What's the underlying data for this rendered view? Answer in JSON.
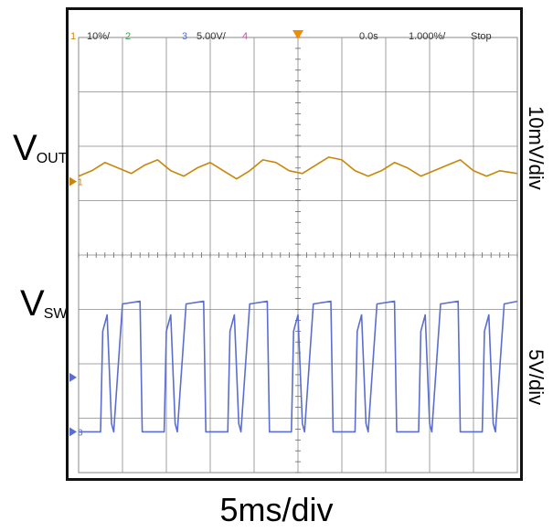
{
  "header": {
    "ch1_number": "1",
    "ch1_scale": "10%/",
    "ch2_number": "2",
    "ch3_number": "3",
    "ch3_scale": "5.00V/",
    "ch4_number": "4",
    "time_position": "0.0s",
    "time_scale": "1.000%/",
    "run_state": "Stop"
  },
  "colors": {
    "ch1": "#c8860a",
    "ch2": "#3aa64c",
    "ch3": "#5b6ed0",
    "ch4": "#c94aa7",
    "grid": "#888888",
    "trigger": "#f08c00"
  },
  "labels": {
    "vout_main": "V",
    "vout_sub": "OUT",
    "vsw_main": "V",
    "vsw_sub": "SW",
    "vout_scale": "10mV/div",
    "vsw_scale": "5V/div",
    "time_scale": "5ms/div"
  },
  "markers": {
    "ch1_marker": "1",
    "ch3_marker": "3"
  },
  "chart_data": {
    "type": "line",
    "grid": true,
    "x_divisions": 10,
    "y_divisions": 8,
    "x_unit": "div",
    "xlim": [
      0,
      10
    ],
    "ylim": [
      0,
      8
    ],
    "series": [
      {
        "name": "VOUT",
        "channel": 1,
        "color": "#c8860a",
        "ground_div": 5.35,
        "description_values_div": "ripple around ~5.55 div, amplitude ~0.25 div",
        "points": [
          [
            0.0,
            5.45
          ],
          [
            0.3,
            5.55
          ],
          [
            0.6,
            5.7
          ],
          [
            0.9,
            5.6
          ],
          [
            1.2,
            5.5
          ],
          [
            1.5,
            5.65
          ],
          [
            1.8,
            5.75
          ],
          [
            2.1,
            5.55
          ],
          [
            2.4,
            5.45
          ],
          [
            2.7,
            5.6
          ],
          [
            3.0,
            5.7
          ],
          [
            3.3,
            5.55
          ],
          [
            3.6,
            5.4
          ],
          [
            3.9,
            5.55
          ],
          [
            4.2,
            5.75
          ],
          [
            4.5,
            5.7
          ],
          [
            4.8,
            5.55
          ],
          [
            5.1,
            5.5
          ],
          [
            5.4,
            5.65
          ],
          [
            5.7,
            5.8
          ],
          [
            6.0,
            5.75
          ],
          [
            6.3,
            5.55
          ],
          [
            6.6,
            5.45
          ],
          [
            6.9,
            5.55
          ],
          [
            7.2,
            5.7
          ],
          [
            7.5,
            5.6
          ],
          [
            7.8,
            5.45
          ],
          [
            8.1,
            5.55
          ],
          [
            8.4,
            5.65
          ],
          [
            8.7,
            5.75
          ],
          [
            9.0,
            5.55
          ],
          [
            9.3,
            5.45
          ],
          [
            9.6,
            5.55
          ],
          [
            10.0,
            5.5
          ]
        ]
      },
      {
        "name": "VSW",
        "channel": 3,
        "color": "#5b6ed0",
        "ground_div": 0.75,
        "description_values_div": "square-ish switching waveform, low ~0.75 div, high ~3.15 div, ~6 periods across screen",
        "points": [
          [
            0.0,
            0.75
          ],
          [
            0.5,
            0.75
          ],
          [
            0.55,
            2.6
          ],
          [
            0.65,
            2.9
          ],
          [
            0.75,
            0.9
          ],
          [
            0.8,
            0.75
          ],
          [
            1.0,
            3.1
          ],
          [
            1.4,
            3.15
          ],
          [
            1.45,
            0.75
          ],
          [
            1.95,
            0.75
          ],
          [
            2.0,
            2.6
          ],
          [
            2.1,
            2.9
          ],
          [
            2.2,
            0.9
          ],
          [
            2.25,
            0.75
          ],
          [
            2.45,
            3.1
          ],
          [
            2.85,
            3.15
          ],
          [
            2.9,
            0.75
          ],
          [
            3.4,
            0.75
          ],
          [
            3.45,
            2.6
          ],
          [
            3.55,
            2.9
          ],
          [
            3.65,
            0.9
          ],
          [
            3.7,
            0.75
          ],
          [
            3.9,
            3.1
          ],
          [
            4.3,
            3.15
          ],
          [
            4.35,
            0.75
          ],
          [
            4.85,
            0.75
          ],
          [
            4.9,
            2.6
          ],
          [
            5.0,
            2.9
          ],
          [
            5.1,
            0.9
          ],
          [
            5.15,
            0.75
          ],
          [
            5.35,
            3.1
          ],
          [
            5.75,
            3.15
          ],
          [
            5.8,
            0.75
          ],
          [
            6.3,
            0.75
          ],
          [
            6.35,
            2.6
          ],
          [
            6.45,
            2.9
          ],
          [
            6.55,
            0.9
          ],
          [
            6.6,
            0.75
          ],
          [
            6.8,
            3.1
          ],
          [
            7.2,
            3.15
          ],
          [
            7.25,
            0.75
          ],
          [
            7.75,
            0.75
          ],
          [
            7.8,
            2.6
          ],
          [
            7.9,
            2.9
          ],
          [
            8.0,
            0.9
          ],
          [
            8.05,
            0.75
          ],
          [
            8.25,
            3.1
          ],
          [
            8.65,
            3.15
          ],
          [
            8.7,
            0.75
          ],
          [
            9.2,
            0.75
          ],
          [
            9.25,
            2.6
          ],
          [
            9.35,
            2.9
          ],
          [
            9.45,
            0.9
          ],
          [
            9.5,
            0.75
          ],
          [
            9.7,
            3.1
          ],
          [
            10.0,
            3.15
          ]
        ]
      }
    ]
  }
}
